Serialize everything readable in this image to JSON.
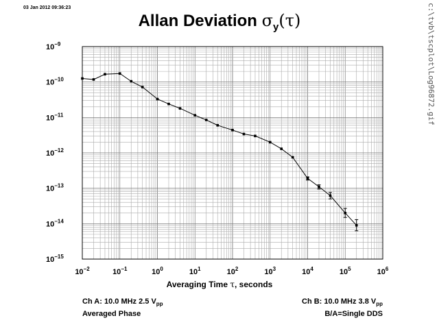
{
  "timestamp": "03 Jan 2012 09:36:23",
  "file_path": "c:\\tvb\\tscplot\\Log96872.gif",
  "footer": {
    "ch_a": "Ch A: 10.0 MHz 2.5 V",
    "ch_a_sub": "pp",
    "ch_a_mode": "Averaged Phase",
    "ch_b": "Ch B: 10.0 MHz 3.8 V",
    "ch_b_sub": "pp",
    "ch_b_mode": "B/A=Single DDS"
  },
  "chart_data": {
    "type": "line",
    "title": "Allan Deviation σy(τ)",
    "title_parts": {
      "main": "Allan Deviation ",
      "sigma": "σ",
      "sub": "y",
      "arg": "(τ)"
    },
    "xlabel": "Averaging Time τ, seconds",
    "xlabel_parts": {
      "before": "Averaging Time ",
      "tau": "τ",
      "after": ", seconds"
    },
    "ylabel": "",
    "xscale": "log",
    "yscale": "log",
    "xlim": [
      0.01,
      1000000
    ],
    "ylim": [
      1e-15,
      1e-09
    ],
    "grid": true,
    "x_tick_labels": [
      {
        "base": "10",
        "exp": "−2"
      },
      {
        "base": "10",
        "exp": "−1"
      },
      {
        "base": "10",
        "exp": "0"
      },
      {
        "base": "10",
        "exp": "1"
      },
      {
        "base": "10",
        "exp": "2"
      },
      {
        "base": "10",
        "exp": "3"
      },
      {
        "base": "10",
        "exp": "4"
      },
      {
        "base": "10",
        "exp": "5"
      },
      {
        "base": "10",
        "exp": "6"
      }
    ],
    "y_tick_labels": [
      {
        "base": "10",
        "exp": "−9"
      },
      {
        "base": "10",
        "exp": "−10"
      },
      {
        "base": "10",
        "exp": "−11"
      },
      {
        "base": "10",
        "exp": "−12"
      },
      {
        "base": "10",
        "exp": "−13"
      },
      {
        "base": "10",
        "exp": "−14"
      },
      {
        "base": "10",
        "exp": "−15"
      }
    ],
    "series": [
      {
        "x": [
          0.01,
          0.02,
          0.04,
          0.1,
          0.2,
          0.4,
          1,
          2,
          4,
          10,
          20,
          40,
          100,
          200,
          400,
          1000,
          2000,
          4000,
          10000,
          20000,
          40000,
          100000,
          200000
        ],
        "y": [
          1.26e-10,
          1.18e-10,
          1.66e-10,
          1.74e-10,
          1.05e-10,
          7.2e-11,
          3.3e-11,
          2.4e-11,
          1.8e-11,
          1.15e-11,
          8.5e-12,
          6e-12,
          4.4e-12,
          3.4e-12,
          3e-12,
          2e-12,
          1.3e-12,
          7.5e-13,
          1.9e-13,
          1.1e-13,
          6.2e-14,
          2e-14,
          9e-15
        ],
        "err_low": [
          null,
          null,
          null,
          null,
          null,
          null,
          null,
          null,
          null,
          null,
          null,
          null,
          null,
          null,
          null,
          null,
          null,
          null,
          1.7e-13,
          9.5e-14,
          5e-14,
          1.5e-14,
          6.3e-15
        ],
        "err_high": [
          null,
          null,
          null,
          null,
          null,
          null,
          null,
          null,
          null,
          null,
          null,
          null,
          null,
          null,
          null,
          null,
          null,
          null,
          2.1e-13,
          1.25e-13,
          7.6e-14,
          2.7e-14,
          1.3e-14
        ]
      }
    ]
  }
}
